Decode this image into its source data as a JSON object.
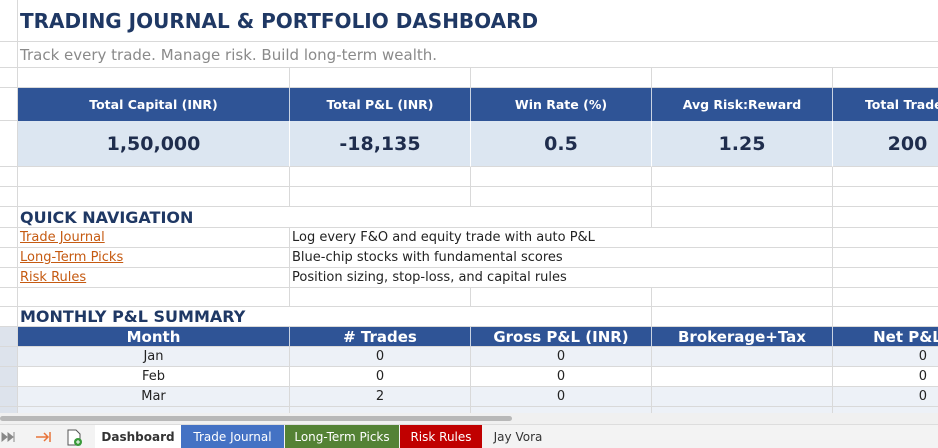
{
  "header": {
    "title": "TRADING JOURNAL & PORTFOLIO DASHBOARD",
    "subtitle": "Track every trade. Manage risk. Build long-term wealth."
  },
  "kpis": [
    {
      "label": "Total Capital (INR)",
      "value": "1,50,000"
    },
    {
      "label": "Total P&L (INR)",
      "value": "-18,135"
    },
    {
      "label": "Win Rate (%)",
      "value": "0.5"
    },
    {
      "label": "Avg Risk:Reward",
      "value": "1.25"
    },
    {
      "label": "Total Trades",
      "value": "200"
    }
  ],
  "navigation": {
    "title": "QUICK NAVIGATION",
    "items": [
      {
        "link": "Trade Journal",
        "description": "Log every F&O and equity trade with auto P&L"
      },
      {
        "link": "Long-Term Picks",
        "description": "Blue-chip stocks with fundamental scores"
      },
      {
        "link": "Risk Rules",
        "description": "Position sizing, stop-loss, and capital rules"
      }
    ]
  },
  "monthly_summary": {
    "title": "MONTHLY P&L SUMMARY",
    "columns": [
      "Month",
      "# Trades",
      "Gross P&L (INR)",
      "Brokerage+Tax",
      "Net P&L"
    ],
    "rows": [
      {
        "month": "Jan",
        "trades": 0,
        "gross_pnl": 0,
        "net_pnl": 0
      },
      {
        "month": "Feb",
        "trades": 0,
        "gross_pnl": 0,
        "net_pnl": 0
      },
      {
        "month": "Mar",
        "trades": 2,
        "gross_pnl": 0,
        "net_pnl": 0
      }
    ]
  },
  "sheet_tabs": [
    {
      "name": "Dashboard",
      "active": true
    },
    {
      "name": "Trade Journal",
      "color": "#4472c4"
    },
    {
      "name": "Long-Term Picks",
      "color": "#548235"
    },
    {
      "name": "Risk Rules",
      "color": "#c00000"
    },
    {
      "name": "Jay Vora"
    }
  ]
}
